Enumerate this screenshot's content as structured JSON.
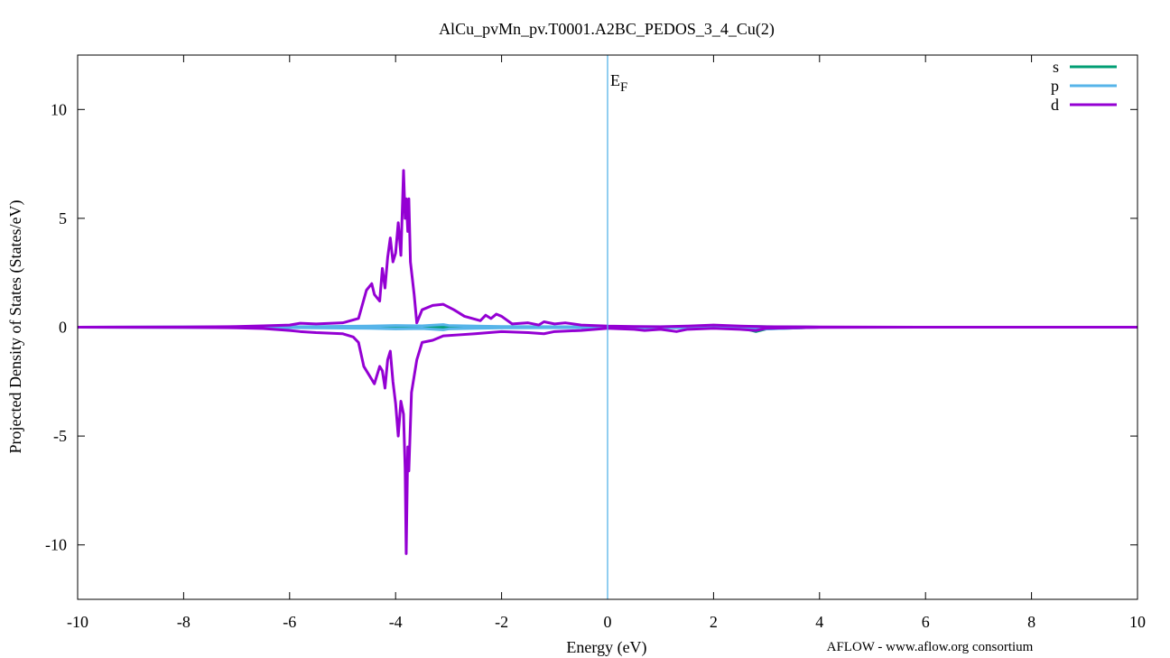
{
  "chart_data": {
    "type": "line",
    "title": "AlCu_pvMn_pv.T0001.A2BC_PEDOS_3_4_Cu(2)",
    "xlabel": "Energy (eV)",
    "ylabel": "Projected Density of States (States/eV)",
    "xlim": [
      -10,
      10
    ],
    "ylim": [
      -12.5,
      12.5
    ],
    "xticks": [
      -10,
      -8,
      -6,
      -4,
      -2,
      0,
      2,
      4,
      6,
      8,
      10
    ],
    "yticks": [
      -10,
      -5,
      0,
      5,
      10
    ],
    "grid": false,
    "legend_position": "top-right",
    "fermi_label": "E",
    "fermi_subscript": "F",
    "fermi_energy": 0,
    "credit": "AFLOW - www.aflow.org consortium",
    "series": [
      {
        "name": "s",
        "color": "#009e73",
        "up": [
          [
            -10,
            0
          ],
          [
            -6,
            0.01
          ],
          [
            -4,
            0.02
          ],
          [
            -3,
            0.03
          ],
          [
            -2,
            0.01
          ],
          [
            0,
            0.01
          ],
          [
            2,
            0.02
          ],
          [
            2.8,
            0.03
          ],
          [
            4,
            0
          ],
          [
            10,
            0
          ]
        ],
        "down": [
          [
            -10,
            0
          ],
          [
            -6,
            -0.01
          ],
          [
            -4,
            -0.02
          ],
          [
            -3,
            -0.03
          ],
          [
            -2,
            -0.01
          ],
          [
            0,
            -0.01
          ],
          [
            2,
            -0.03
          ],
          [
            2.6,
            -0.08
          ],
          [
            2.8,
            -0.2
          ],
          [
            3.0,
            -0.08
          ],
          [
            4,
            0
          ],
          [
            10,
            0
          ]
        ]
      },
      {
        "name": "p",
        "color": "#56b4e9",
        "up": [
          [
            -10,
            0
          ],
          [
            -6,
            0.02
          ],
          [
            -4.5,
            0.05
          ],
          [
            -4,
            0.08
          ],
          [
            -3.5,
            0.06
          ],
          [
            -3.1,
            0.12
          ],
          [
            -3,
            0.08
          ],
          [
            -2.5,
            0.05
          ],
          [
            -2,
            0.03
          ],
          [
            0,
            0.02
          ],
          [
            2,
            0.03
          ],
          [
            4,
            0
          ],
          [
            10,
            0
          ]
        ],
        "down": [
          [
            -10,
            0
          ],
          [
            -6,
            -0.02
          ],
          [
            -4.5,
            -0.05
          ],
          [
            -4,
            -0.08
          ],
          [
            -3.5,
            -0.06
          ],
          [
            -3.1,
            -0.12
          ],
          [
            -3,
            -0.08
          ],
          [
            -2.5,
            -0.05
          ],
          [
            -2,
            -0.03
          ],
          [
            0,
            -0.02
          ],
          [
            2,
            -0.03
          ],
          [
            2.8,
            -0.1
          ],
          [
            4,
            0
          ],
          [
            10,
            0
          ]
        ]
      },
      {
        "name": "d",
        "color": "#9400d3",
        "up": [
          [
            -10,
            0
          ],
          [
            -8,
            0.01
          ],
          [
            -7,
            0.03
          ],
          [
            -6.5,
            0.06
          ],
          [
            -6,
            0.1
          ],
          [
            -5.8,
            0.18
          ],
          [
            -5.5,
            0.15
          ],
          [
            -5,
            0.2
          ],
          [
            -4.7,
            0.4
          ],
          [
            -4.55,
            1.7
          ],
          [
            -4.45,
            2.0
          ],
          [
            -4.4,
            1.5
          ],
          [
            -4.3,
            1.2
          ],
          [
            -4.25,
            2.7
          ],
          [
            -4.2,
            1.8
          ],
          [
            -4.15,
            3.2
          ],
          [
            -4.1,
            4.1
          ],
          [
            -4.05,
            3.0
          ],
          [
            -4,
            3.4
          ],
          [
            -3.95,
            4.8
          ],
          [
            -3.9,
            3.3
          ],
          [
            -3.85,
            7.2
          ],
          [
            -3.82,
            5.0
          ],
          [
            -3.8,
            5.9
          ],
          [
            -3.77,
            4.4
          ],
          [
            -3.75,
            5.9
          ],
          [
            -3.72,
            3.0
          ],
          [
            -3.65,
            1.5
          ],
          [
            -3.6,
            0.2
          ],
          [
            -3.5,
            0.8
          ],
          [
            -3.3,
            1.0
          ],
          [
            -3.1,
            1.05
          ],
          [
            -2.9,
            0.8
          ],
          [
            -2.7,
            0.5
          ],
          [
            -2.4,
            0.3
          ],
          [
            -2.3,
            0.55
          ],
          [
            -2.2,
            0.4
          ],
          [
            -2.1,
            0.6
          ],
          [
            -2.0,
            0.5
          ],
          [
            -1.8,
            0.15
          ],
          [
            -1.5,
            0.2
          ],
          [
            -1.3,
            0.1
          ],
          [
            -1.2,
            0.25
          ],
          [
            -1.0,
            0.15
          ],
          [
            -0.8,
            0.2
          ],
          [
            -0.5,
            0.1
          ],
          [
            0,
            0.05
          ],
          [
            0.5,
            0.03
          ],
          [
            1,
            0.02
          ],
          [
            1.5,
            0.05
          ],
          [
            2,
            0.1
          ],
          [
            2.5,
            0.05
          ],
          [
            3,
            0.02
          ],
          [
            4,
            0.01
          ],
          [
            6,
            0
          ],
          [
            10,
            0
          ]
        ],
        "down": [
          [
            -10,
            0
          ],
          [
            -8,
            -0.01
          ],
          [
            -7,
            -0.03
          ],
          [
            -6.5,
            -0.06
          ],
          [
            -6,
            -0.15
          ],
          [
            -5.8,
            -0.2
          ],
          [
            -5.5,
            -0.25
          ],
          [
            -5,
            -0.3
          ],
          [
            -4.8,
            -0.45
          ],
          [
            -4.7,
            -0.7
          ],
          [
            -4.6,
            -1.8
          ],
          [
            -4.5,
            -2.2
          ],
          [
            -4.4,
            -2.6
          ],
          [
            -4.3,
            -1.8
          ],
          [
            -4.25,
            -2.0
          ],
          [
            -4.2,
            -2.8
          ],
          [
            -4.15,
            -1.5
          ],
          [
            -4.1,
            -1.1
          ],
          [
            -4.05,
            -2.5
          ],
          [
            -4.0,
            -3.5
          ],
          [
            -3.95,
            -5.0
          ],
          [
            -3.9,
            -3.4
          ],
          [
            -3.85,
            -4.0
          ],
          [
            -3.82,
            -6.5
          ],
          [
            -3.8,
            -10.4
          ],
          [
            -3.77,
            -5.5
          ],
          [
            -3.75,
            -6.6
          ],
          [
            -3.7,
            -3.0
          ],
          [
            -3.6,
            -1.5
          ],
          [
            -3.5,
            -0.7
          ],
          [
            -3.3,
            -0.6
          ],
          [
            -3.1,
            -0.4
          ],
          [
            -2.8,
            -0.35
          ],
          [
            -2.5,
            -0.3
          ],
          [
            -2.0,
            -0.2
          ],
          [
            -1.5,
            -0.25
          ],
          [
            -1.2,
            -0.3
          ],
          [
            -1.0,
            -0.2
          ],
          [
            -0.5,
            -0.15
          ],
          [
            0,
            -0.05
          ],
          [
            0.5,
            -0.1
          ],
          [
            0.7,
            -0.15
          ],
          [
            1.0,
            -0.1
          ],
          [
            1.3,
            -0.2
          ],
          [
            1.5,
            -0.1
          ],
          [
            2,
            -0.05
          ],
          [
            2.5,
            -0.1
          ],
          [
            2.8,
            -0.15
          ],
          [
            3.0,
            -0.05
          ],
          [
            4,
            -0.01
          ],
          [
            6,
            0
          ],
          [
            10,
            0
          ]
        ]
      }
    ]
  }
}
